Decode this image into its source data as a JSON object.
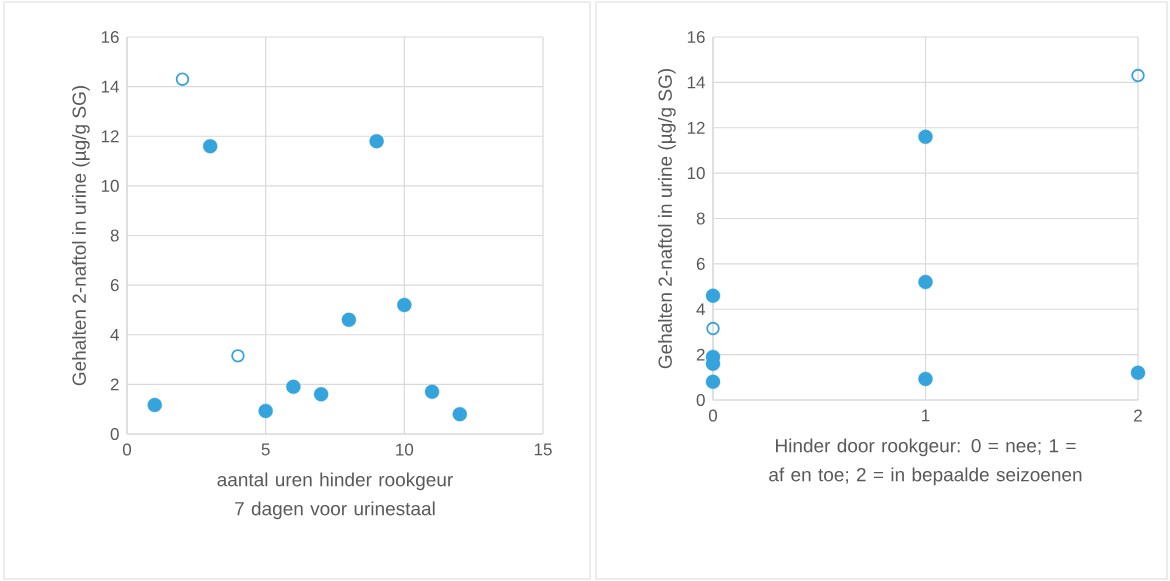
{
  "chart_data": [
    {
      "type": "scatter",
      "xlabel": "aantal uren hinder rookgeur 7 dagen voor urinestaal",
      "ylabel": "Gehalten 2-naftol in urine (µg/g SG)",
      "xlim": [
        0,
        15
      ],
      "xticks": [
        0,
        5,
        10,
        15
      ],
      "ylim": [
        0,
        16
      ],
      "yticks": [
        0,
        2,
        4,
        6,
        8,
        10,
        12,
        14,
        16
      ],
      "grid": true,
      "series": [
        {
          "color": "#35a3dc",
          "marker": "circle",
          "x": [
            1,
            3,
            5,
            6,
            7,
            8,
            9,
            10,
            11,
            12
          ],
          "values": [
            1.17,
            11.6,
            0.93,
            1.9,
            1.6,
            4.6,
            11.8,
            5.2,
            1.7,
            0.8
          ]
        },
        {
          "color": "#35a3dc",
          "marker": "circle open",
          "x": [
            2,
            4
          ],
          "values": [
            14.3,
            3.15
          ]
        }
      ]
    },
    {
      "type": "scatter",
      "xlabel": "Hinder door rookgeur: 0 = nee; 1 = af en toe; 2 = in bepaalde seizoenen",
      "ylabel": "Gehalten 2-naftol in urine (µg/g SG)",
      "xlim": [
        0,
        2
      ],
      "xticks": [
        0,
        1,
        2
      ],
      "ylim": [
        0,
        16
      ],
      "yticks": [
        0,
        2,
        4,
        6,
        8,
        10,
        12,
        14,
        16
      ],
      "grid": true,
      "series": [
        {
          "color": "#35a3dc",
          "marker": "circle",
          "x": [
            0,
            0,
            0,
            0,
            1,
            1,
            1,
            2
          ],
          "values": [
            4.6,
            1.9,
            1.6,
            0.8,
            11.6,
            5.2,
            0.93,
            1.2
          ]
        },
        {
          "color": "#35a3dc",
          "marker": "circle open",
          "x": [
            0,
            2
          ],
          "values": [
            3.15,
            14.3
          ]
        }
      ]
    }
  ]
}
